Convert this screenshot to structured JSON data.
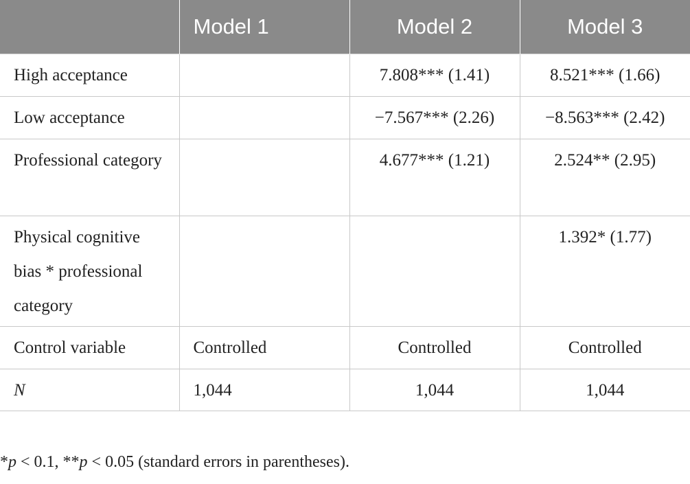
{
  "table": {
    "header": [
      "Model 1",
      "Model 2",
      "Model 3"
    ],
    "rows": [
      {
        "label": "High acceptance",
        "model2": "7.808*** (1.41)",
        "model3": "8.521*** (1.66)"
      },
      {
        "label": "Low acceptance",
        "model2": "−7.567*** (2.26)",
        "model3": "−8.563*** (2.42)"
      },
      {
        "label": "Professional category",
        "model2": "4.677*** (1.21)",
        "model3": "2.524** (2.95)"
      },
      {
        "label": "Physical cognitive bias * professional category",
        "model3": "1.392* (1.77)"
      },
      {
        "label": "Control variable",
        "model1": "Controlled",
        "model2": "Controlled",
        "model3": "Controlled"
      },
      {
        "label": "N",
        "model1": "1,044",
        "model2": "1,044",
        "model3": "1,044"
      }
    ]
  },
  "footnote": [
    "*",
    "p",
    " < 0.1, **",
    "p",
    " < 0.05 (standard errors in parentheses)."
  ]
}
